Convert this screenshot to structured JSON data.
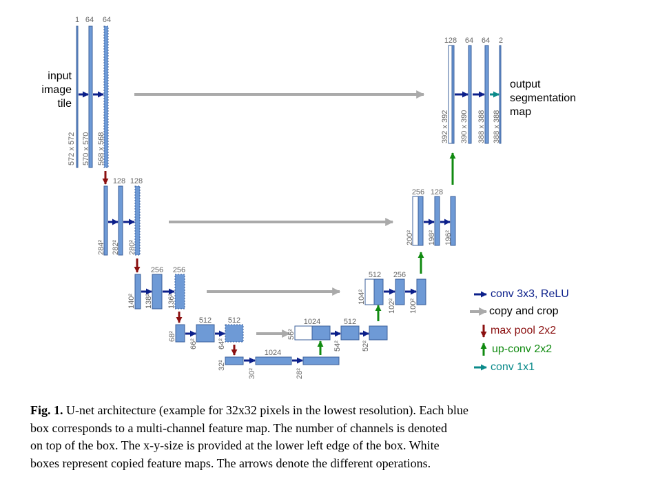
{
  "figure": {
    "input_label": [
      "input",
      "image",
      "tile"
    ],
    "output_label": [
      "output",
      "segmentation",
      "map"
    ],
    "channels": [
      "1",
      "64",
      "64",
      "128",
      "128",
      "256",
      "256",
      "512",
      "512",
      "1024",
      "1024",
      "512",
      "512",
      "256",
      "256",
      "128",
      "128",
      "64",
      "64",
      "2"
    ],
    "sizes": [
      "572 x 572",
      "570 x 570",
      "568 x 568",
      "284²",
      "282²",
      "280²",
      "140²",
      "138²",
      "136²",
      "68²",
      "66²",
      "64²",
      "32²",
      "30²",
      "28²",
      "56²",
      "54²",
      "52²",
      "104²",
      "102²",
      "100²",
      "200²",
      "198²",
      "196²",
      "392 x 392",
      "390 x 390",
      "388 x 388",
      "388 x 388"
    ],
    "legend": [
      "conv 3x3, ReLU",
      "copy and crop",
      "max pool 2x2",
      "up-conv 2x2",
      "conv 1x1"
    ]
  },
  "caption": {
    "label": "Fig. 1.",
    "lines": [
      "U-net architecture (example for 32x32 pixels in the lowest resolution). Each blue",
      "box corresponds to a multi-channel feature map. The number of channels is denoted",
      "on top of the box. The x-y-size is provided at the lower left edge of the box. White",
      "boxes represent copied feature maps. The arrows denote the different operations."
    ]
  }
}
